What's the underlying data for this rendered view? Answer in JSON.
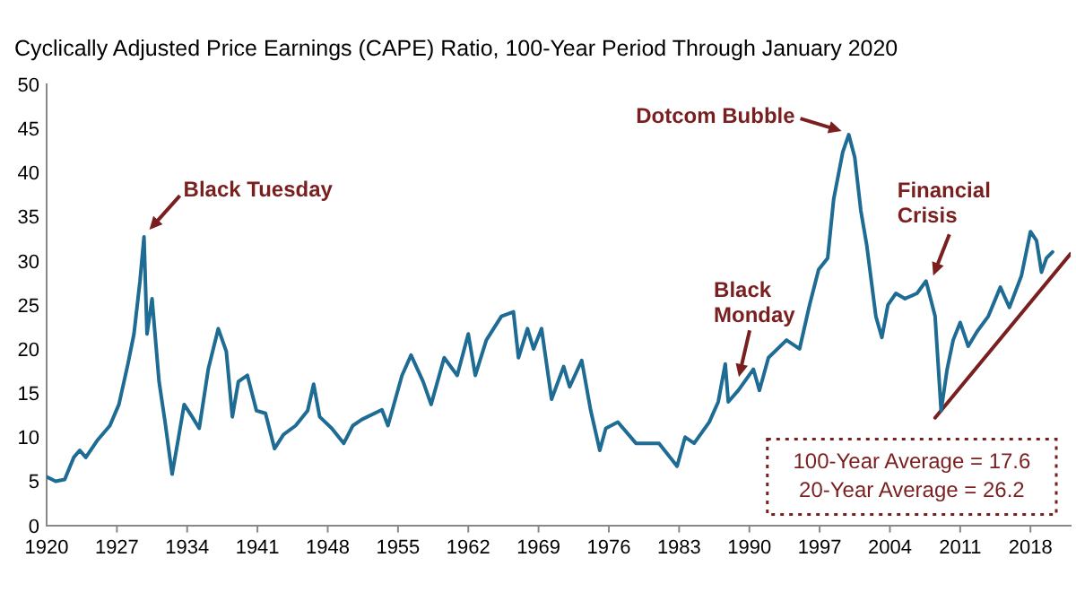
{
  "chart_data": {
    "type": "line",
    "subtitle": "Cyclically Adjusted Price Earnings (CAPE) Ratio, 100-Year Period Through January 2020",
    "xlim": [
      1920,
      2022
    ],
    "xticks": [
      1920,
      1927,
      1934,
      1941,
      1948,
      1955,
      1962,
      1969,
      1976,
      1983,
      1990,
      1997,
      2004,
      2011,
      2018
    ],
    "ylim": [
      0,
      50
    ],
    "yticks": [
      0,
      5,
      10,
      15,
      20,
      25,
      30,
      35,
      40,
      45,
      50
    ],
    "series": [
      {
        "color": "#1e6b94",
        "x": [
          1920,
          1920.9,
          1921.8,
          1922.7,
          1923.3,
          1923.9,
          1925.1,
          1926.3,
          1927.2,
          1928.1,
          1928.7,
          1929.3,
          1929.7,
          1930,
          1930.5,
          1931.2,
          1931.8,
          1932.5,
          1933.1,
          1933.7,
          1934.5,
          1935.2,
          1936.1,
          1937.1,
          1937.9,
          1938.5,
          1939.1,
          1940,
          1940.9,
          1941.8,
          1942.7,
          1943.6,
          1944.8,
          1946,
          1946.6,
          1947.2,
          1948.4,
          1949.6,
          1950.5,
          1951.4,
          1953.4,
          1954,
          1955.4,
          1956.3,
          1957.5,
          1958.3,
          1959.6,
          1960.9,
          1962,
          1962.7,
          1963.8,
          1965.3,
          1966.5,
          1967,
          1967.9,
          1968.5,
          1969.3,
          1970.3,
          1971.5,
          1972.1,
          1973.3,
          1974.2,
          1975.1,
          1975.7,
          1976.9,
          1978.7,
          1981,
          1982.8,
          1983.6,
          1984.5,
          1986,
          1986.9,
          1987.6,
          1987.9,
          1988.9,
          1990.4,
          1991,
          1991.9,
          1993.7,
          1995,
          1996,
          1996.9,
          1997.8,
          1998.4,
          1999.3,
          1999.9,
          2000.5,
          2001.1,
          2001.7,
          2002.6,
          2003.2,
          2003.8,
          2004.6,
          2005.5,
          2006.7,
          2007.6,
          2008.5,
          2009.1,
          2009.7,
          2010.3,
          2011,
          2011.8,
          2012.7,
          2013.8,
          2015,
          2015.9,
          2017.1,
          2018,
          2018.6,
          2019.1,
          2019.6,
          2020.2
        ],
        "values": [
          5.5,
          5.0,
          5.2,
          7.7,
          8.5,
          7.7,
          9.7,
          11.3,
          13.7,
          18.3,
          21.7,
          27.7,
          32.7,
          21.7,
          25.7,
          16.3,
          11.7,
          5.8,
          9.7,
          13.7,
          12.3,
          11,
          17.7,
          22.3,
          19.7,
          12.3,
          16.3,
          17,
          13,
          12.7,
          8.7,
          10.3,
          11.3,
          13,
          16,
          12.3,
          11,
          9.3,
          11.3,
          12,
          13.1,
          11.3,
          17,
          19.3,
          16.3,
          13.7,
          19,
          17,
          21.7,
          17,
          21,
          23.7,
          24.2,
          19,
          22.3,
          20,
          22.3,
          14.3,
          18,
          15.7,
          18.7,
          13,
          8.5,
          11,
          11.7,
          9.3,
          9.3,
          6.7,
          10,
          9.3,
          11.7,
          14,
          18.3,
          14,
          15.3,
          17.7,
          15.3,
          19,
          21,
          20,
          25,
          29,
          30.3,
          37,
          42.3,
          44.3,
          41.7,
          35.7,
          31.7,
          23.7,
          21.3,
          25,
          26.3,
          25.7,
          26.3,
          27.7,
          23.7,
          13,
          17.7,
          21,
          23,
          20.3,
          22,
          23.7,
          27,
          24.7,
          28.3,
          33.3,
          32.3,
          28.7,
          30.3,
          31
        ]
      },
      {
        "type": "line",
        "color": "#7a1f1f",
        "x": [
          2008.5,
          2022
        ],
        "values": [
          12.2,
          30.8
        ]
      }
    ],
    "annotations": [
      {
        "text": "Black Tuesday",
        "x": 1929.7,
        "y": 32.7
      },
      {
        "text": "Dotcom Bubble",
        "x": 1999.9,
        "y": 44.3
      },
      {
        "text": "Black Monday",
        "x": 1988.6,
        "y": 16
      },
      {
        "text": "Financial Crisis",
        "x": 2007.6,
        "y": 27.7
      },
      "100-Year Average = 17.6",
      "20-Year Average = 26.2"
    ]
  }
}
